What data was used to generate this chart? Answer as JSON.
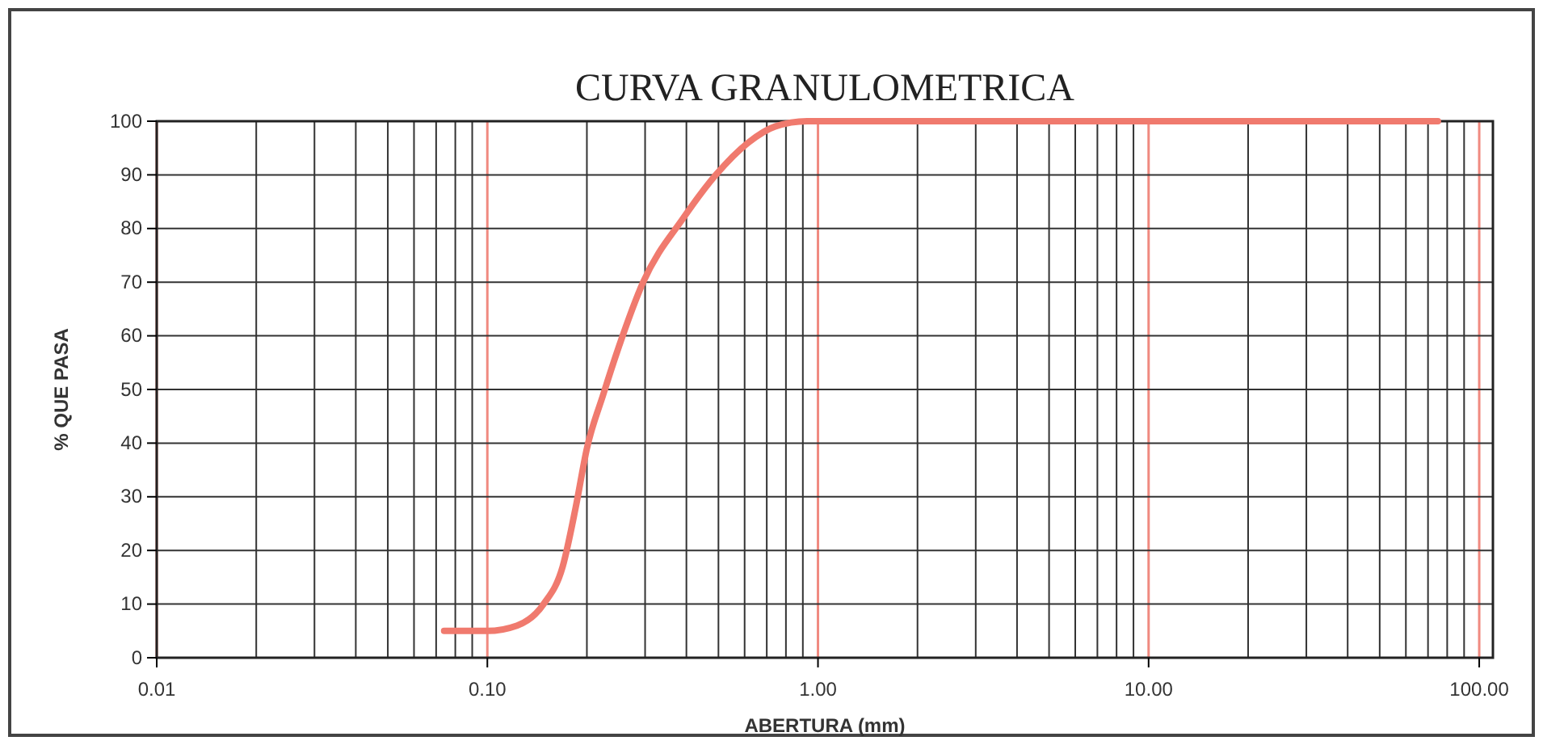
{
  "chart_data": {
    "type": "line",
    "title": "CURVA GRANULOMETRICA",
    "xlabel": "ABERTURA (mm)",
    "ylabel": "% QUE PASA",
    "log": "x",
    "grid": true,
    "marker": "none",
    "line_style": "solid",
    "xlim": [
      0.01,
      110
    ],
    "ylim": [
      0,
      100
    ],
    "xticks": [
      {
        "value": 0.01,
        "label": "0.01"
      },
      {
        "value": 0.02,
        "label": null
      },
      {
        "value": 0.03,
        "label": null
      },
      {
        "value": 0.04,
        "label": null
      },
      {
        "value": 0.05,
        "label": null
      },
      {
        "value": 0.06,
        "label": null
      },
      {
        "value": 0.07,
        "label": null
      },
      {
        "value": 0.08,
        "label": null
      },
      {
        "value": 0.09,
        "label": null
      },
      {
        "value": 0.1,
        "label": "0.10"
      },
      {
        "value": 0.2,
        "label": null
      },
      {
        "value": 0.3,
        "label": null
      },
      {
        "value": 0.4,
        "label": null
      },
      {
        "value": 0.5,
        "label": null
      },
      {
        "value": 0.6,
        "label": null
      },
      {
        "value": 0.7,
        "label": null
      },
      {
        "value": 0.8,
        "label": null
      },
      {
        "value": 0.9,
        "label": null
      },
      {
        "value": 1,
        "label": "1.00"
      },
      {
        "value": 2,
        "label": null
      },
      {
        "value": 3,
        "label": null
      },
      {
        "value": 4,
        "label": null
      },
      {
        "value": 5,
        "label": null
      },
      {
        "value": 6,
        "label": null
      },
      {
        "value": 7,
        "label": null
      },
      {
        "value": 8,
        "label": null
      },
      {
        "value": 9,
        "label": null
      },
      {
        "value": 10,
        "label": "10.00"
      },
      {
        "value": 20,
        "label": null
      },
      {
        "value": 30,
        "label": null
      },
      {
        "value": 40,
        "label": null
      },
      {
        "value": 50,
        "label": null
      },
      {
        "value": 60,
        "label": null
      },
      {
        "value": 70,
        "label": null
      },
      {
        "value": 80,
        "label": null
      },
      {
        "value": 90,
        "label": null
      },
      {
        "value": 100,
        "label": "100.00"
      }
    ],
    "yticks": [
      0,
      10,
      20,
      30,
      40,
      50,
      60,
      70,
      80,
      90,
      100
    ],
    "series": [
      {
        "color": "#f07a6e",
        "x": [
          0.074,
          0.1,
          0.123,
          0.148,
          0.169,
          0.185,
          0.2,
          0.224,
          0.25,
          0.296,
          0.392,
          0.491,
          0.615,
          0.741,
          0.927,
          1.5,
          10,
          75
        ],
        "values": [
          5,
          5,
          6,
          10,
          17,
          28,
          39,
          49,
          58,
          70,
          82,
          90,
          96,
          99,
          100,
          100,
          100,
          100
        ]
      }
    ]
  }
}
